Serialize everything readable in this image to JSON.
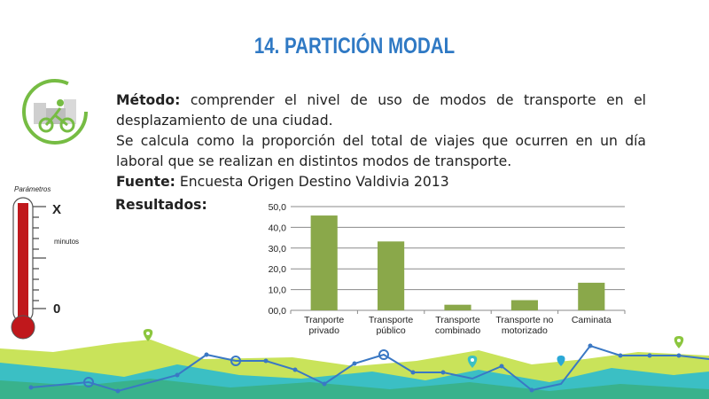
{
  "title": "14. PARTICIÓN MODAL",
  "description": {
    "method_label": "Método:",
    "method_text": " comprender el nivel de uso de modos de transporte en el desplazamiento de una ciudad.",
    "calc_text": "Se calcula como la proporción del total de viajes que ocurren en un día laboral que se realizan en distintos modos de transporte.",
    "source_label": "Fuente:",
    "source_text": " Encuesta Origen Destino Valdivia 2013"
  },
  "results_label": "Resultados:",
  "thermometer": {
    "params_label": "Parámetros",
    "top_value": "X",
    "unit": "minutos",
    "bottom_value": "0"
  },
  "colors": {
    "title": "#2f79c4",
    "bar": "#8aa84a",
    "thermo_red": "#c0181c",
    "logo_green": "#76bc43"
  },
  "chart_data": {
    "type": "bar",
    "title": "",
    "xlabel": "",
    "ylabel": "",
    "categories": [
      [
        "Tranporte",
        "privado"
      ],
      [
        "Transporte",
        "público"
      ],
      [
        "Transporte",
        "combinado"
      ],
      [
        "Transporte no",
        "motorizado"
      ],
      [
        "Caminata"
      ]
    ],
    "values": [
      45.7,
      33.2,
      2.7,
      4.9,
      13.3
    ],
    "yticks": [
      "00,0",
      "10,0",
      "20,0",
      "30,0",
      "40,0",
      "50,0"
    ],
    "ylim": [
      0,
      50
    ],
    "grid": true
  }
}
